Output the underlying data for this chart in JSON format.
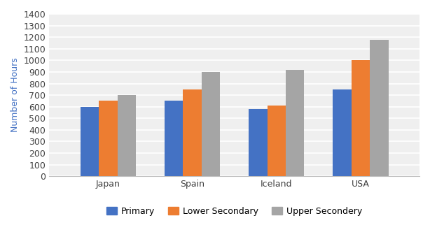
{
  "categories": [
    "Japan",
    "Spain",
    "Iceland",
    "USA"
  ],
  "series": {
    "Primary": [
      600,
      650,
      580,
      750
    ],
    "Lower Secondary": [
      650,
      750,
      610,
      1000
    ],
    "Upper Secondery": [
      700,
      900,
      920,
      1175
    ]
  },
  "colors": {
    "Primary": "#4472C4",
    "Lower Secondary": "#ED7D31",
    "Upper Secondery": "#A5A5A5"
  },
  "ylabel": "Number of Hours",
  "ylim": [
    0,
    1400
  ],
  "yticks": [
    0,
    100,
    200,
    300,
    400,
    500,
    600,
    700,
    800,
    900,
    1000,
    1100,
    1200,
    1300,
    1400
  ],
  "legend_labels": [
    "Primary",
    "Lower Secondary",
    "Upper Secondery"
  ],
  "bar_width": 0.22,
  "background_color": "#FFFFFF",
  "plot_bg_color": "#F2F2F2",
  "grid_color": "#FFFFFF",
  "ylabel_color": "#4472C4",
  "ylabel_fontsize": 9,
  "tick_fontsize": 9,
  "legend_fontsize": 9
}
